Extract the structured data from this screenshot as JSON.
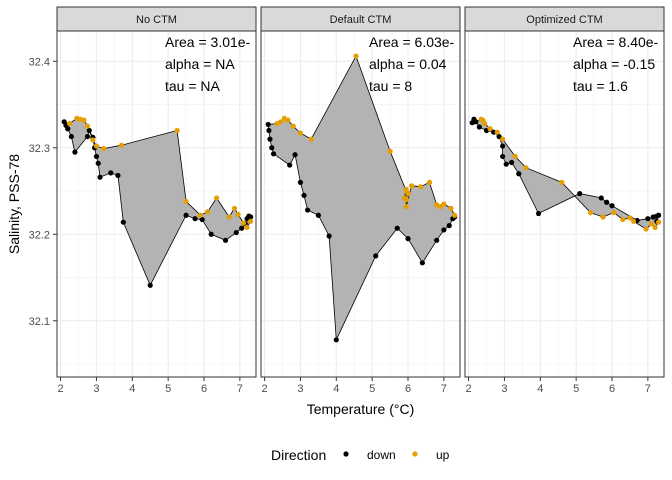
{
  "chart_data": {
    "type": "scatter",
    "subtype": "hysteresis-polygon facets",
    "xlabel": "Temperature (°C)",
    "ylabel": "Salinity, PSS-78",
    "xlim": [
      1.9,
      7.45
    ],
    "ylim": [
      32.035,
      32.435
    ],
    "x_ticks": [
      2,
      3,
      4,
      5,
      6,
      7
    ],
    "y_ticks": [
      32.1,
      32.2,
      32.3,
      32.4
    ],
    "y_tick_labels": [
      "32.1",
      "32.2",
      "32.3",
      "32.4"
    ],
    "grid": true,
    "legend": {
      "title": "Direction",
      "position": "bottom",
      "entries": [
        {
          "label": "down",
          "color": "#000000"
        },
        {
          "label": "up",
          "color": "#E69F00"
        }
      ]
    },
    "colors": {
      "down": "#000000",
      "up": "#E69F00",
      "polygon_fill": "#b3b3b3",
      "strip_bg": "#d9d9d9"
    },
    "panels": [
      {
        "title": "No CTM",
        "annotations": [
          "Area = 3.01e-",
          "alpha = NA",
          "tau = NA"
        ],
        "down": [
          [
            2.1,
            32.33
          ],
          [
            2.15,
            32.326
          ],
          [
            2.2,
            32.322
          ],
          [
            2.3,
            32.313
          ],
          [
            2.4,
            32.295
          ],
          [
            2.75,
            32.313
          ],
          [
            2.8,
            32.32
          ],
          [
            2.9,
            32.312
          ],
          [
            2.95,
            32.3
          ],
          [
            3.0,
            32.29
          ],
          [
            3.05,
            32.282
          ],
          [
            3.1,
            32.266
          ],
          [
            3.4,
            32.271
          ],
          [
            3.6,
            32.268
          ],
          [
            3.75,
            32.214
          ],
          [
            4.5,
            32.141
          ],
          [
            5.5,
            32.222
          ],
          [
            5.75,
            32.218
          ],
          [
            5.95,
            32.217
          ],
          [
            6.2,
            32.2
          ],
          [
            6.6,
            32.193
          ],
          [
            6.9,
            32.202
          ],
          [
            7.05,
            32.207
          ],
          [
            7.15,
            32.212
          ],
          [
            7.2,
            32.218
          ],
          [
            7.25,
            32.221
          ],
          [
            7.3,
            32.22
          ]
        ],
        "up": [
          [
            7.3,
            32.215
          ],
          [
            7.2,
            32.208
          ],
          [
            7.1,
            32.213
          ],
          [
            6.95,
            32.223
          ],
          [
            6.85,
            32.23
          ],
          [
            6.7,
            32.22
          ],
          [
            6.35,
            32.242
          ],
          [
            6.1,
            32.226
          ],
          [
            5.9,
            32.222
          ],
          [
            5.5,
            32.238
          ],
          [
            5.25,
            32.32
          ],
          [
            3.7,
            32.303
          ],
          [
            3.2,
            32.299
          ],
          [
            3.0,
            32.302
          ],
          [
            2.9,
            32.309
          ],
          [
            2.75,
            32.325
          ],
          [
            2.65,
            32.332
          ],
          [
            2.55,
            32.333
          ],
          [
            2.45,
            32.334
          ],
          [
            2.25,
            32.328
          ]
        ]
      },
      {
        "title": "Default CTM",
        "annotations": [
          "Area = 6.03e-",
          "alpha = 0.04",
          "tau = 8"
        ],
        "down": [
          [
            2.1,
            32.327
          ],
          [
            2.12,
            32.32
          ],
          [
            2.15,
            32.31
          ],
          [
            2.2,
            32.3
          ],
          [
            2.25,
            32.293
          ],
          [
            2.7,
            32.28
          ],
          [
            2.85,
            32.292
          ],
          [
            3.0,
            32.26
          ],
          [
            3.1,
            32.245
          ],
          [
            3.2,
            32.228
          ],
          [
            3.5,
            32.222
          ],
          [
            3.8,
            32.198
          ],
          [
            4.0,
            32.078
          ],
          [
            5.1,
            32.175
          ],
          [
            5.7,
            32.207
          ],
          [
            6.0,
            32.195
          ],
          [
            6.4,
            32.167
          ],
          [
            6.8,
            32.193
          ],
          [
            7.0,
            32.205
          ],
          [
            7.15,
            32.21
          ],
          [
            7.25,
            32.218
          ],
          [
            7.3,
            32.22
          ]
        ],
        "up": [
          [
            7.3,
            32.222
          ],
          [
            7.2,
            32.23
          ],
          [
            7.0,
            32.235
          ],
          [
            6.9,
            32.232
          ],
          [
            6.8,
            32.234
          ],
          [
            6.6,
            32.26
          ],
          [
            6.35,
            32.255
          ],
          [
            6.1,
            32.256
          ],
          [
            5.95,
            32.232
          ],
          [
            5.95,
            32.252
          ],
          [
            5.9,
            32.242
          ],
          [
            5.95,
            32.25
          ],
          [
            6.0,
            32.247
          ],
          [
            5.95,
            32.24
          ],
          [
            5.95,
            32.25
          ],
          [
            5.5,
            32.296
          ],
          [
            4.55,
            32.406
          ],
          [
            3.3,
            32.31
          ],
          [
            3.0,
            32.317
          ],
          [
            2.8,
            32.325
          ],
          [
            2.65,
            32.332
          ],
          [
            2.55,
            32.334
          ],
          [
            2.45,
            32.33
          ],
          [
            2.35,
            32.328
          ]
        ]
      },
      {
        "title": "Optimized CTM",
        "annotations": [
          "Area = 8.40e-",
          "alpha = -0.15",
          "tau = 1.6"
        ],
        "down": [
          [
            2.1,
            32.329
          ],
          [
            2.15,
            32.333
          ],
          [
            2.2,
            32.33
          ],
          [
            2.3,
            32.324
          ],
          [
            2.5,
            32.32
          ],
          [
            2.7,
            32.318
          ],
          [
            2.85,
            32.313
          ],
          [
            2.95,
            32.302
          ],
          [
            2.95,
            32.29
          ],
          [
            3.05,
            32.281
          ],
          [
            3.2,
            32.283
          ],
          [
            3.4,
            32.27
          ],
          [
            3.95,
            32.224
          ],
          [
            5.1,
            32.247
          ],
          [
            5.7,
            32.242
          ],
          [
            5.85,
            32.237
          ],
          [
            6.0,
            32.233
          ],
          [
            6.7,
            32.216
          ],
          [
            7.0,
            32.218
          ],
          [
            7.15,
            32.22
          ],
          [
            7.25,
            32.221
          ],
          [
            7.3,
            32.222
          ],
          [
            7.25,
            32.215
          ]
        ],
        "up": [
          [
            7.3,
            32.214
          ],
          [
            7.2,
            32.208
          ],
          [
            7.1,
            32.212
          ],
          [
            6.95,
            32.206
          ],
          [
            6.6,
            32.215
          ],
          [
            6.5,
            32.219
          ],
          [
            6.3,
            32.217
          ],
          [
            6.05,
            32.225
          ],
          [
            5.75,
            32.22
          ],
          [
            5.4,
            32.225
          ],
          [
            4.6,
            32.26
          ],
          [
            3.6,
            32.277
          ],
          [
            3.3,
            32.29
          ],
          [
            2.95,
            32.31
          ],
          [
            2.8,
            32.318
          ],
          [
            2.6,
            32.322
          ],
          [
            2.45,
            32.328
          ],
          [
            2.4,
            32.332
          ],
          [
            2.35,
            32.333
          ]
        ]
      }
    ]
  }
}
